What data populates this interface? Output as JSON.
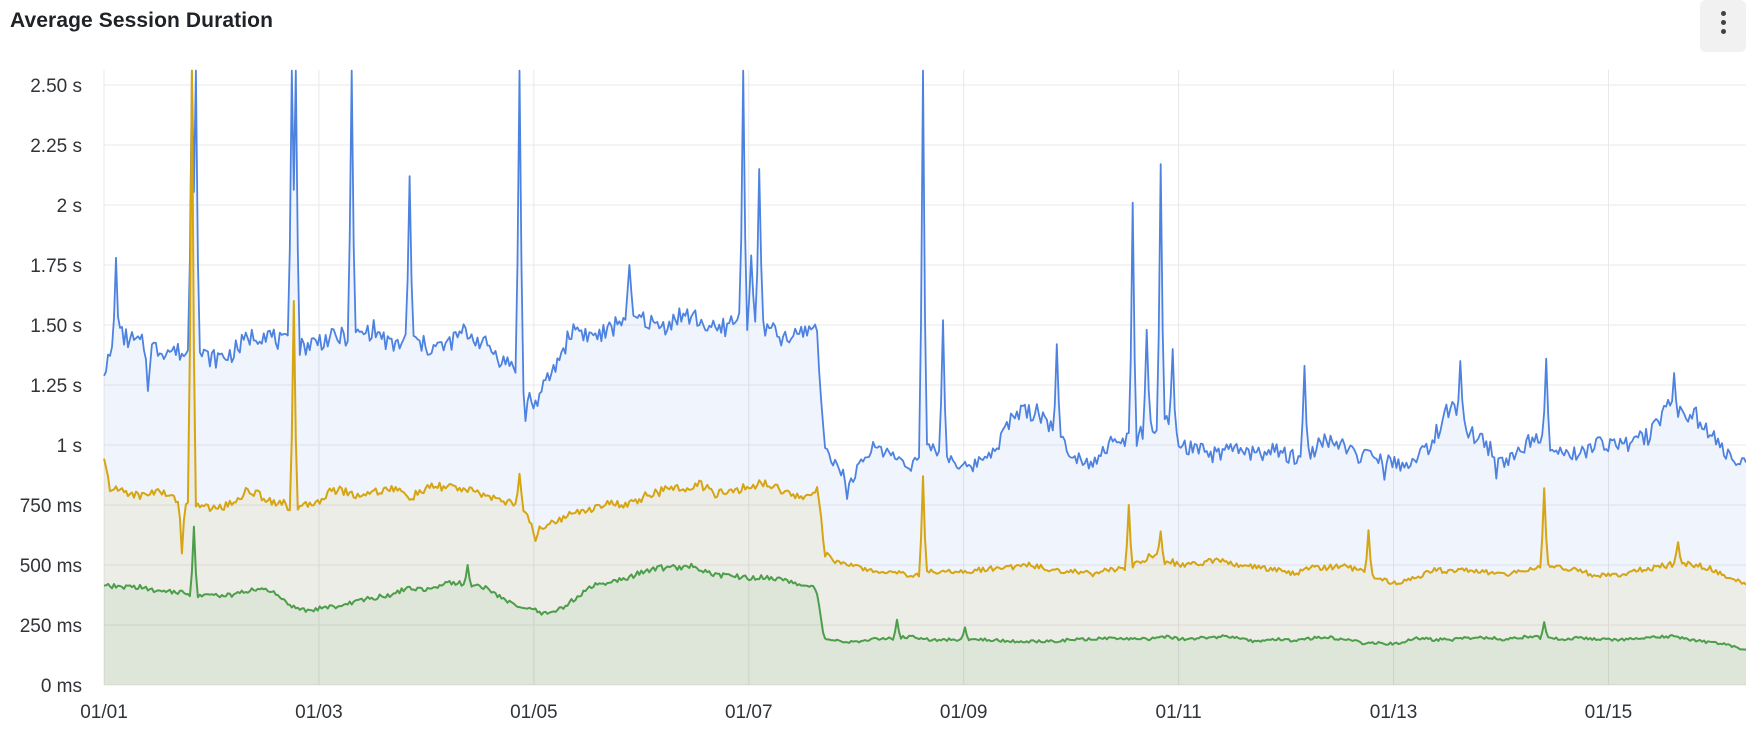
{
  "panel": {
    "title": "Average Session Duration",
    "menu_icon": "kebab-vertical-icon"
  },
  "colors": {
    "blue_series": "#4d82e0",
    "gold_series": "#d6a513",
    "green_series": "#4d9e4a",
    "grid": "#e8e8ea",
    "axis_text": "#303338",
    "title_text": "#1f2226",
    "panel_background": "#ffffff",
    "menu_background": "#f1f1f1",
    "menu_dots": "#3f4347"
  },
  "chart_data": {
    "type": "line",
    "title": "Average Session Duration",
    "x_unit": "date (MM/DD, January)",
    "y_unit": "milliseconds",
    "grid": true,
    "legend_position": "none",
    "ylim_ms": [
      0,
      2562
    ],
    "xlim_days": [
      1,
      16.28
    ],
    "y_ticks": [
      {
        "value_ms": 0,
        "label": "0 ms"
      },
      {
        "value_ms": 250,
        "label": "250 ms"
      },
      {
        "value_ms": 500,
        "label": "500 ms"
      },
      {
        "value_ms": 750,
        "label": "750 ms"
      },
      {
        "value_ms": 1000,
        "label": "1 s"
      },
      {
        "value_ms": 1250,
        "label": "1.25 s"
      },
      {
        "value_ms": 1500,
        "label": "1.50 s"
      },
      {
        "value_ms": 1750,
        "label": "1.75 s"
      },
      {
        "value_ms": 2000,
        "label": "2 s"
      },
      {
        "value_ms": 2250,
        "label": "2.25 s"
      },
      {
        "value_ms": 2500,
        "label": "2.50 s"
      }
    ],
    "x_ticks": [
      {
        "day": 1,
        "label": "01/01"
      },
      {
        "day": 3,
        "label": "01/03"
      },
      {
        "day": 5,
        "label": "01/05"
      },
      {
        "day": 7,
        "label": "01/07"
      },
      {
        "day": 9,
        "label": "01/09"
      },
      {
        "day": 11,
        "label": "01/11"
      },
      {
        "day": 13,
        "label": "01/13"
      },
      {
        "day": 15,
        "label": "01/15"
      }
    ],
    "notes": "Three stacked-looking area/line series; all drop sharply at ~01/07.65. Spikes above 2500 ms are clipped at plot top. keypoints = [day, value_ms, noise_amplitude_ms]; spikes = [day, peak_value_ms].",
    "series": [
      {
        "name": "series-blue",
        "color": "#4d82e0",
        "fill_opacity": 0.085,
        "stroke_width": 1.8,
        "seed": 7,
        "keypoints": [
          [
            1.0,
            1290,
            40
          ],
          [
            1.15,
            1460,
            60
          ],
          [
            1.45,
            1430,
            55
          ],
          [
            1.75,
            1370,
            50
          ],
          [
            2.05,
            1400,
            55
          ],
          [
            2.35,
            1450,
            55
          ],
          [
            2.65,
            1400,
            55
          ],
          [
            2.95,
            1430,
            55
          ],
          [
            3.3,
            1460,
            55
          ],
          [
            3.65,
            1450,
            55
          ],
          [
            4.0,
            1450,
            55
          ],
          [
            4.35,
            1430,
            50
          ],
          [
            4.6,
            1390,
            50
          ],
          [
            4.88,
            1270,
            40
          ],
          [
            5.0,
            1170,
            35
          ],
          [
            5.15,
            1320,
            50
          ],
          [
            5.4,
            1470,
            55
          ],
          [
            5.7,
            1490,
            55
          ],
          [
            6.05,
            1520,
            50
          ],
          [
            6.4,
            1500,
            55
          ],
          [
            6.7,
            1460,
            55
          ],
          [
            6.95,
            1520,
            65
          ],
          [
            7.15,
            1490,
            65
          ],
          [
            7.35,
            1410,
            55
          ],
          [
            7.55,
            1450,
            45
          ],
          [
            7.63,
            1520,
            35
          ],
          [
            7.7,
            1030,
            30
          ],
          [
            7.8,
            950,
            30
          ],
          [
            7.95,
            880,
            35
          ],
          [
            8.15,
            970,
            40
          ],
          [
            8.45,
            950,
            40
          ],
          [
            8.75,
            955,
            40
          ],
          [
            9.05,
            925,
            35
          ],
          [
            9.3,
            1000,
            45
          ],
          [
            9.5,
            1150,
            55
          ],
          [
            9.7,
            1110,
            55
          ],
          [
            9.9,
            1000,
            45
          ],
          [
            10.15,
            955,
            40
          ],
          [
            10.45,
            990,
            45
          ],
          [
            10.75,
            1070,
            65
          ],
          [
            11.0,
            1040,
            55
          ],
          [
            11.3,
            975,
            45
          ],
          [
            11.6,
            950,
            40
          ],
          [
            11.9,
            1000,
            45
          ],
          [
            12.2,
            965,
            45
          ],
          [
            12.5,
            1030,
            50
          ],
          [
            12.8,
            950,
            40
          ],
          [
            13.05,
            905,
            35
          ],
          [
            13.3,
            1000,
            50
          ],
          [
            13.55,
            1110,
            65
          ],
          [
            13.8,
            1070,
            55
          ],
          [
            14.05,
            950,
            45
          ],
          [
            14.35,
            1020,
            55
          ],
          [
            14.65,
            1000,
            50
          ],
          [
            14.95,
            975,
            45
          ],
          [
            15.2,
            1000,
            45
          ],
          [
            15.5,
            1120,
            55
          ],
          [
            15.8,
            1140,
            55
          ],
          [
            16.05,
            1020,
            45
          ],
          [
            16.18,
            930,
            30
          ],
          [
            16.28,
            945,
            25
          ]
        ],
        "spikes": [
          [
            1.12,
            1780
          ],
          [
            1.41,
            1225
          ],
          [
            1.82,
            2560
          ],
          [
            1.86,
            2560
          ],
          [
            2.74,
            2560
          ],
          [
            2.78,
            2560
          ],
          [
            3.3,
            2560
          ],
          [
            3.84,
            2120
          ],
          [
            4.86,
            2560
          ],
          [
            4.93,
            1100
          ],
          [
            5.88,
            1750
          ],
          [
            6.95,
            2560
          ],
          [
            7.02,
            1790
          ],
          [
            7.09,
            2150
          ],
          [
            7.92,
            775
          ],
          [
            8.62,
            2560
          ],
          [
            8.81,
            1520
          ],
          [
            9.86,
            1420
          ],
          [
            10.57,
            2010
          ],
          [
            10.7,
            1480
          ],
          [
            10.83,
            2170
          ],
          [
            10.95,
            1400
          ],
          [
            12.18,
            1330
          ],
          [
            12.91,
            855
          ],
          [
            13.62,
            1350
          ],
          [
            13.95,
            860
          ],
          [
            14.42,
            1360
          ],
          [
            15.62,
            1300
          ]
        ]
      },
      {
        "name": "series-gold",
        "color": "#d6a513",
        "fill_opacity": 0.09,
        "stroke_width": 2,
        "seed": 21,
        "keypoints": [
          [
            1.0,
            935,
            10
          ],
          [
            1.06,
            800,
            25
          ],
          [
            1.4,
            800,
            25
          ],
          [
            1.72,
            760,
            20
          ],
          [
            2.0,
            740,
            22
          ],
          [
            2.35,
            795,
            25
          ],
          [
            2.75,
            745,
            25
          ],
          [
            3.1,
            795,
            25
          ],
          [
            3.5,
            820,
            25
          ],
          [
            3.9,
            800,
            25
          ],
          [
            4.3,
            830,
            25
          ],
          [
            4.6,
            790,
            22
          ],
          [
            4.88,
            735,
            18
          ],
          [
            5.02,
            650,
            15
          ],
          [
            5.25,
            680,
            18
          ],
          [
            5.55,
            725,
            20
          ],
          [
            5.85,
            765,
            22
          ],
          [
            6.15,
            795,
            25
          ],
          [
            6.5,
            830,
            28
          ],
          [
            6.8,
            800,
            25
          ],
          [
            7.1,
            840,
            25
          ],
          [
            7.35,
            820,
            22
          ],
          [
            7.55,
            785,
            18
          ],
          [
            7.64,
            825,
            15
          ],
          [
            7.71,
            545,
            15
          ],
          [
            7.85,
            500,
            14
          ],
          [
            8.15,
            478,
            13
          ],
          [
            8.5,
            462,
            12
          ],
          [
            8.8,
            478,
            14
          ],
          [
            9.1,
            470,
            14
          ],
          [
            9.5,
            502,
            18
          ],
          [
            9.8,
            480,
            15
          ],
          [
            10.1,
            468,
            14
          ],
          [
            10.45,
            492,
            16
          ],
          [
            10.8,
            522,
            22
          ],
          [
            11.1,
            500,
            16
          ],
          [
            11.45,
            512,
            16
          ],
          [
            11.8,
            480,
            14
          ],
          [
            12.1,
            468,
            14
          ],
          [
            12.4,
            500,
            16
          ],
          [
            12.75,
            468,
            14
          ],
          [
            13.0,
            432,
            12
          ],
          [
            13.3,
            468,
            14
          ],
          [
            13.6,
            480,
            14
          ],
          [
            13.9,
            462,
            14
          ],
          [
            14.2,
            478,
            14
          ],
          [
            14.45,
            492,
            14
          ],
          [
            14.75,
            468,
            14
          ],
          [
            15.05,
            452,
            14
          ],
          [
            15.35,
            482,
            16
          ],
          [
            15.65,
            512,
            18
          ],
          [
            15.95,
            478,
            16
          ],
          [
            16.15,
            440,
            12
          ],
          [
            16.28,
            422,
            10
          ]
        ],
        "spikes": [
          [
            1.72,
            548
          ],
          [
            1.82,
            2560
          ],
          [
            2.76,
            1600
          ],
          [
            4.87,
            880
          ],
          [
            5.02,
            600
          ],
          [
            8.62,
            870
          ],
          [
            10.54,
            750
          ],
          [
            10.83,
            640
          ],
          [
            12.76,
            645
          ],
          [
            14.4,
            820
          ],
          [
            15.65,
            595
          ]
        ]
      },
      {
        "name": "series-green",
        "color": "#4d9e4a",
        "fill_opacity": 0.09,
        "stroke_width": 2,
        "seed": 40,
        "keypoints": [
          [
            1.0,
            415,
            15
          ],
          [
            1.3,
            400,
            14
          ],
          [
            1.6,
            385,
            12
          ],
          [
            1.9,
            368,
            12
          ],
          [
            2.2,
            380,
            12
          ],
          [
            2.5,
            398,
            14
          ],
          [
            2.72,
            335,
            12
          ],
          [
            2.92,
            312,
            10
          ],
          [
            3.12,
            332,
            12
          ],
          [
            3.4,
            360,
            14
          ],
          [
            3.7,
            388,
            14
          ],
          [
            4.0,
            400,
            14
          ],
          [
            4.3,
            428,
            16
          ],
          [
            4.55,
            408,
            14
          ],
          [
            4.85,
            322,
            10
          ],
          [
            5.08,
            296,
            10
          ],
          [
            5.32,
            330,
            12
          ],
          [
            5.62,
            428,
            15
          ],
          [
            5.92,
            450,
            15
          ],
          [
            6.2,
            478,
            16
          ],
          [
            6.42,
            505,
            16
          ],
          [
            6.65,
            462,
            14
          ],
          [
            6.92,
            440,
            14
          ],
          [
            7.15,
            450,
            13
          ],
          [
            7.38,
            438,
            12
          ],
          [
            7.55,
            420,
            10
          ],
          [
            7.63,
            402,
            8
          ],
          [
            7.7,
            192,
            8
          ],
          [
            7.85,
            176,
            7
          ],
          [
            8.15,
            186,
            8
          ],
          [
            8.45,
            198,
            9
          ],
          [
            8.75,
            190,
            8
          ],
          [
            9.05,
            194,
            8
          ],
          [
            9.35,
            184,
            8
          ],
          [
            9.65,
            180,
            8
          ],
          [
            9.95,
            190,
            8
          ],
          [
            10.25,
            196,
            8
          ],
          [
            10.55,
            190,
            8
          ],
          [
            10.85,
            200,
            9
          ],
          [
            11.15,
            190,
            8
          ],
          [
            11.45,
            196,
            8
          ],
          [
            11.75,
            186,
            8
          ],
          [
            12.05,
            190,
            8
          ],
          [
            12.35,
            196,
            8
          ],
          [
            12.65,
            186,
            8
          ],
          [
            12.92,
            168,
            7
          ],
          [
            13.2,
            190,
            8
          ],
          [
            13.5,
            196,
            8
          ],
          [
            13.8,
            190,
            8
          ],
          [
            14.1,
            196,
            8
          ],
          [
            14.4,
            202,
            9
          ],
          [
            14.7,
            190,
            8
          ],
          [
            15.0,
            186,
            8
          ],
          [
            15.3,
            196,
            8
          ],
          [
            15.6,
            202,
            9
          ],
          [
            15.9,
            186,
            8
          ],
          [
            16.1,
            172,
            7
          ],
          [
            16.28,
            152,
            6
          ]
        ],
        "spikes": [
          [
            1.84,
            660
          ],
          [
            4.38,
            500
          ],
          [
            8.38,
            272
          ],
          [
            9.02,
            240
          ],
          [
            14.4,
            262
          ]
        ]
      }
    ]
  }
}
